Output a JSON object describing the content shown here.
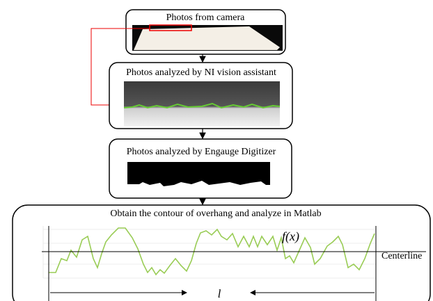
{
  "nodes": [
    {
      "label": "Photos from camera"
    },
    {
      "label": "Photos analyzed by NI vision assistant"
    },
    {
      "label": "Photos analyzed by Engauge Digitizer"
    },
    {
      "label": "Obtain the contour of overhang and analyze in Matlab"
    }
  ],
  "annotations": {
    "function": "f(x)",
    "centerline": "Centerline",
    "length": "l"
  }
}
